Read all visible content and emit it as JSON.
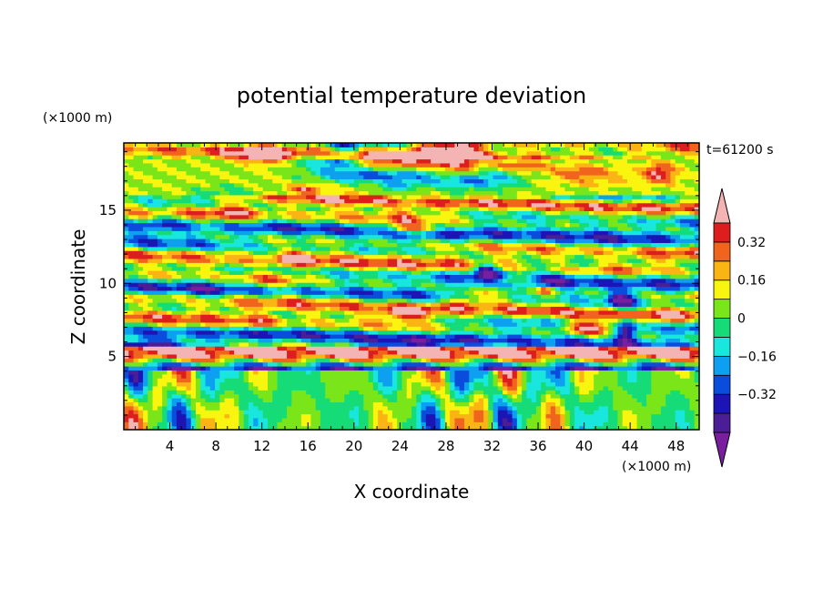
{
  "chart_data": {
    "type": "heatmap",
    "title": "potential temperature deviation",
    "xlabel": "X coordinate",
    "ylabel": "Z coordinate",
    "x_unit": "(×1000 m)",
    "y_unit": "(×1000 m)",
    "time_label": "t=61200 s",
    "xlim": [
      0,
      50
    ],
    "ylim": [
      0,
      19.6
    ],
    "x_ticks": [
      4,
      8,
      12,
      16,
      20,
      24,
      28,
      32,
      36,
      40,
      44,
      48
    ],
    "y_ticks": [
      5,
      10,
      15
    ],
    "colorbar": {
      "levels": [
        -0.48,
        -0.4,
        -0.32,
        -0.24,
        -0.16,
        -0.08,
        0,
        0.08,
        0.16,
        0.24,
        0.32,
        0.4,
        0.48
      ],
      "colors": [
        "#7a1ea0",
        "#4b1e96",
        "#1c14b4",
        "#0a4cdc",
        "#0ea0f0",
        "#19e6dc",
        "#16dc78",
        "#7ae619",
        "#faf50f",
        "#fab414",
        "#f0641e",
        "#dc1e1e",
        "#f5b4b4"
      ],
      "labeled_ticks": [
        0.32,
        0.16,
        0,
        -0.16,
        -0.32
      ],
      "tick_labels": [
        "0.32",
        "0.16",
        "0",
        "−0.16",
        "−0.32"
      ]
    }
  }
}
